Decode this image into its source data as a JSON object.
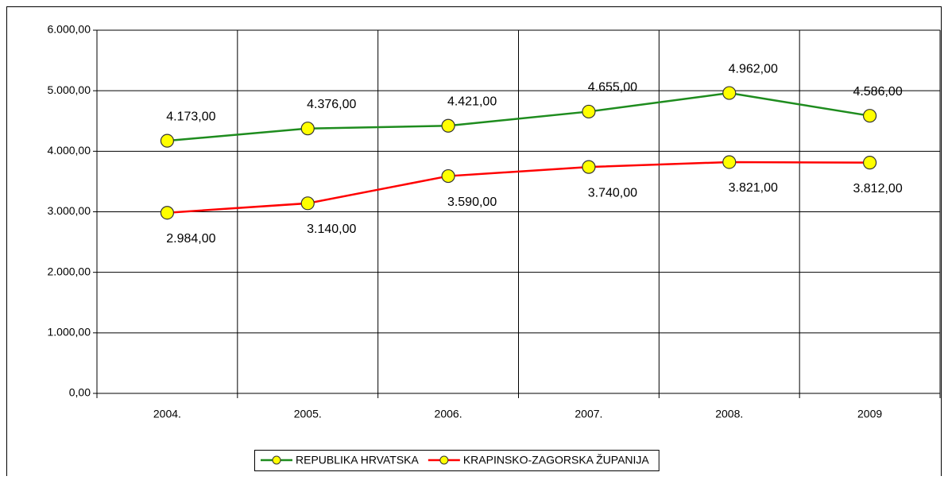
{
  "chart_data": {
    "type": "line",
    "categories": [
      "2004.",
      "2005.",
      "2006.",
      "2007.",
      "2008.",
      "2009"
    ],
    "series": [
      {
        "name": "REPUBLIKA HRVATSKA",
        "color": "#1e8c1e",
        "marker_color": "#ffff00",
        "values": [
          4173,
          4376,
          4421,
          4655,
          4962,
          4586
        ],
        "value_labels": [
          "4.173,00",
          "4.376,00",
          "4.421,00",
          "4.655,00",
          "4.962,00",
          "4.586,00"
        ]
      },
      {
        "name": "KRAPINSKO-ZAGORSKA ŽUPANIJA",
        "color": "#ff0000",
        "marker_color": "#ffff00",
        "values": [
          2984,
          3140,
          3590,
          3740,
          3821,
          3812
        ],
        "value_labels": [
          "2.984,00",
          "3.140,00",
          "3.590,00",
          "3.740,00",
          "3.821,00",
          "3.812,00"
        ]
      }
    ],
    "ylim": [
      0,
      6000
    ],
    "yticks": [
      {
        "value": 0,
        "label": "0,00"
      },
      {
        "value": 1000,
        "label": "1.000,00"
      },
      {
        "value": 2000,
        "label": "2.000,00"
      },
      {
        "value": 3000,
        "label": "3.000,00"
      },
      {
        "value": 4000,
        "label": "4.000,00"
      },
      {
        "value": 5000,
        "label": "5.000,00"
      },
      {
        "value": 6000,
        "label": "6.000,00"
      }
    ],
    "grid": true,
    "legend": "bottom"
  }
}
